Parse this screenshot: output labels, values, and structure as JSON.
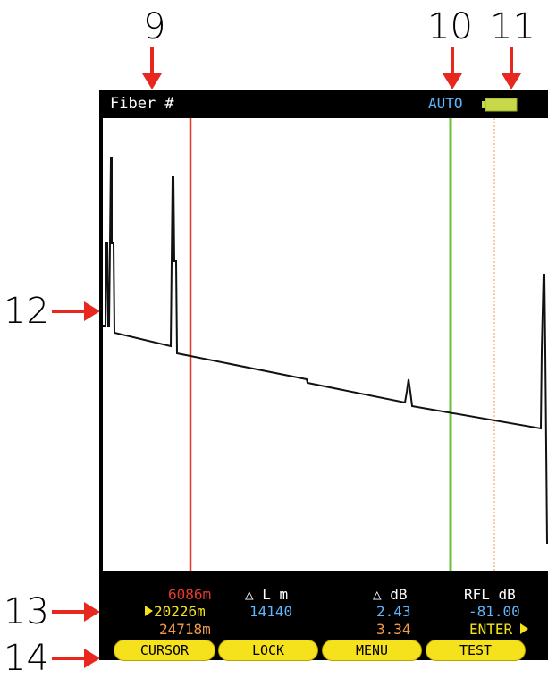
{
  "callouts": {
    "c9": "9",
    "c10": "10",
    "c11": "11",
    "c12": "12",
    "c13": "13",
    "c14": "14"
  },
  "header": {
    "fiber_label": "Fiber #",
    "mode": "AUTO"
  },
  "colors": {
    "cursor_a": "#e53b2f",
    "cursor_b": "#6fbf3a",
    "cursor_c": "#f19a4a",
    "accent_blue": "#5fb6ff",
    "battery": "#c7d94a",
    "button": "#f5e21c"
  },
  "readout": {
    "cursor_a_pos": "6086m",
    "cursor_b_pos": "20226m",
    "cursor_c_pos": "24718m",
    "delta_l_header": "△ L m",
    "delta_l_value": "14140",
    "delta_db_header": "△ dB",
    "delta_db_b": "2.43",
    "delta_db_c": "3.34",
    "rfl_header": "RFL dB",
    "rfl_value": "-81.00",
    "enter_label": "ENTER"
  },
  "buttons": {
    "cursor": "CURSOR",
    "lock": "LOCK",
    "menu": "MENU",
    "test": "TEST"
  }
}
